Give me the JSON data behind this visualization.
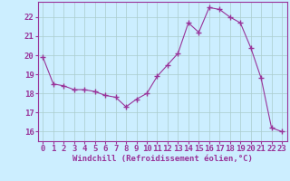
{
  "x": [
    0,
    1,
    2,
    3,
    4,
    5,
    6,
    7,
    8,
    9,
    10,
    11,
    12,
    13,
    14,
    15,
    16,
    17,
    18,
    19,
    20,
    21,
    22,
    23
  ],
  "y": [
    19.9,
    18.5,
    18.4,
    18.2,
    18.2,
    18.1,
    17.9,
    17.8,
    17.3,
    17.7,
    18.0,
    18.9,
    19.5,
    20.1,
    21.7,
    21.2,
    22.5,
    22.4,
    22.0,
    21.7,
    20.4,
    18.8,
    16.2,
    16.0
  ],
  "ylim": [
    15.5,
    22.8
  ],
  "yticks": [
    16,
    17,
    18,
    19,
    20,
    21,
    22
  ],
  "xticks": [
    0,
    1,
    2,
    3,
    4,
    5,
    6,
    7,
    8,
    9,
    10,
    11,
    12,
    13,
    14,
    15,
    16,
    17,
    18,
    19,
    20,
    21,
    22,
    23
  ],
  "line_color": "#993399",
  "marker": "+",
  "marker_size": 4,
  "marker_lw": 1.0,
  "bg_color": "#cceeff",
  "grid_color": "#aacccc",
  "xlabel": "Windchill (Refroidissement éolien,°C)",
  "xlabel_color": "#993399",
  "tick_color": "#993399",
  "axis_color": "#993399",
  "font_size_xlabel": 6.5,
  "font_size_ticks": 6.5,
  "line_width": 0.8
}
